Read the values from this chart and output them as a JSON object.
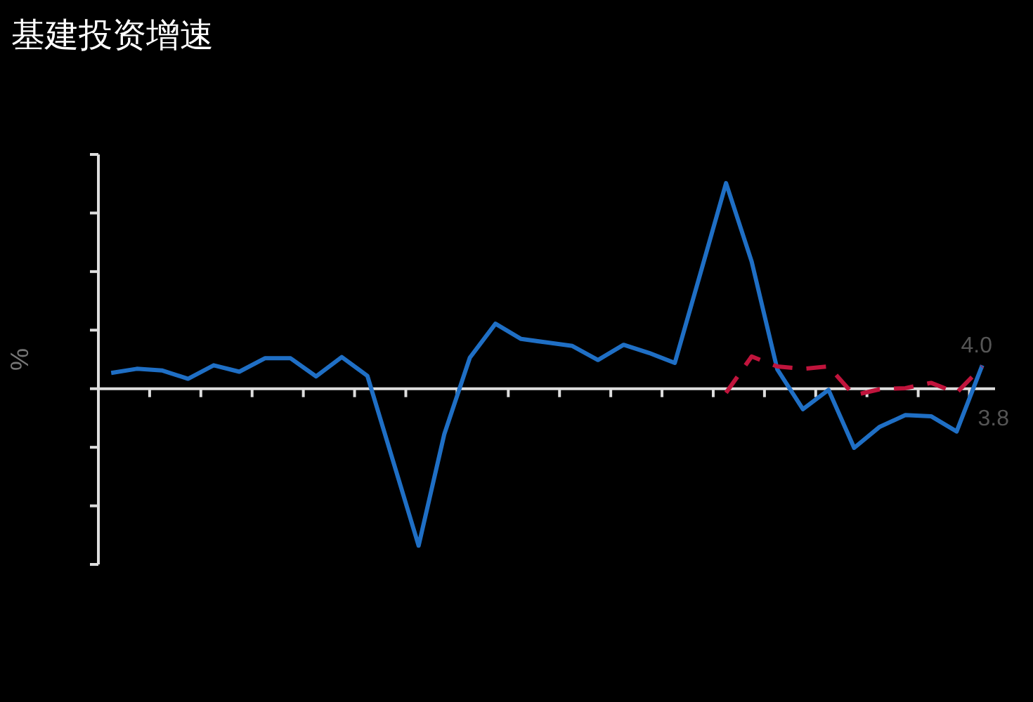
{
  "chart_data": {
    "type": "line",
    "title": "基建投资增速",
    "ylabel": "%",
    "categories": [
      null,
      null,
      null,
      null,
      null,
      null,
      null,
      null,
      null,
      null,
      null,
      null,
      null,
      null,
      null,
      null,
      null,
      null,
      null,
      null,
      null,
      null,
      null,
      null,
      null,
      null,
      null,
      null,
      null,
      null,
      null,
      null,
      null,
      null,
      null
    ],
    "series": [
      {
        "color": "#1f6fc5",
        "line_style": "solid",
        "values": [
          2.7,
          3.4,
          3.1,
          1.7,
          4.0,
          2.9,
          5.2,
          5.2,
          2.1,
          5.4,
          2.2,
          -12.3,
          -26.8,
          -7.8,
          5.3,
          11.1,
          8.5,
          7.9,
          7.3,
          4.9,
          7.5,
          6.1,
          4.4,
          19.7,
          35.1,
          21.7,
          3.3,
          -3.5,
          -0.2,
          -10.1,
          -6.5,
          -4.5,
          -4.7,
          -7.3,
          4.0
        ],
        "value_labels": [
          null,
          null,
          null,
          null,
          null,
          null,
          null,
          null,
          null,
          null,
          null,
          null,
          null,
          null,
          null,
          null,
          null,
          null,
          null,
          null,
          null,
          null,
          null,
          null,
          null,
          null,
          null,
          null,
          null,
          null,
          null,
          null,
          null,
          null,
          "4.0"
        ]
      },
      {
        "color": "#c0143c",
        "line_style": "dashed",
        "values": [
          null,
          null,
          null,
          null,
          null,
          null,
          null,
          null,
          null,
          null,
          null,
          null,
          null,
          null,
          null,
          null,
          null,
          null,
          null,
          null,
          null,
          null,
          null,
          null,
          -0.7,
          5.5,
          3.8,
          3.4,
          3.8,
          -1.1,
          -0.1,
          0.1,
          1.0,
          -0.7,
          3.8
        ],
        "value_labels": [
          null,
          null,
          null,
          null,
          null,
          null,
          null,
          null,
          null,
          null,
          null,
          null,
          null,
          null,
          null,
          null,
          null,
          null,
          null,
          null,
          null,
          null,
          null,
          null,
          null,
          null,
          null,
          null,
          null,
          null,
          null,
          null,
          null,
          null,
          "3.8"
        ]
      }
    ],
    "ylim": [
      -30,
      40
    ],
    "yticks": [
      {
        "value": -30,
        "label": null
      },
      {
        "value": -20,
        "label": null
      },
      {
        "value": -10,
        "label": null
      },
      {
        "value": 0,
        "label": null
      },
      {
        "value": 10,
        "label": null
      },
      {
        "value": 20,
        "label": null
      },
      {
        "value": 30,
        "label": null
      },
      {
        "value": 40,
        "label": null
      }
    ],
    "grid": false
  }
}
